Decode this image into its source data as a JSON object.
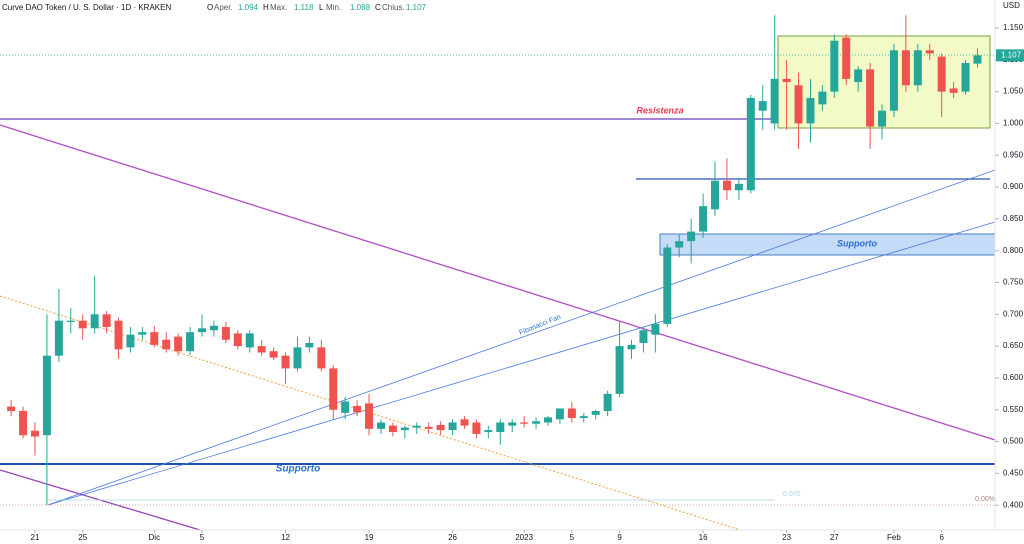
{
  "chart_data": {
    "type": "candlestick",
    "title": "Curve DAO Token / U. S. Dollar · 1D · KRAKEN",
    "header": {
      "o": "O",
      "o_label": "Aper.",
      "h": "H",
      "h_label": "Max.",
      "l": "L",
      "l_label": "Min.",
      "c": "C",
      "c_label": "Chius."
    },
    "currency": "USD",
    "categories": [
      null,
      null,
      "21",
      null,
      null,
      null,
      "25",
      null,
      null,
      null,
      null,
      null,
      "Dic",
      null,
      null,
      null,
      "5",
      null,
      null,
      null,
      null,
      null,
      null,
      "12",
      null,
      null,
      null,
      null,
      null,
      null,
      "19",
      null,
      null,
      null,
      null,
      null,
      null,
      "26",
      null,
      null,
      null,
      null,
      null,
      "2023",
      null,
      null,
      null,
      "5",
      null,
      null,
      null,
      "9",
      null,
      null,
      null,
      null,
      null,
      null,
      "16",
      null,
      null,
      null,
      null,
      null,
      null,
      "23",
      null,
      null,
      null,
      "27",
      null,
      null,
      null,
      null,
      "Feb",
      null,
      null,
      null,
      "6",
      null,
      null,
      null
    ],
    "open": [
      0.555,
      0.548,
      0.517,
      0.51,
      0.635,
      0.688,
      0.69,
      0.678,
      0.7,
      0.69,
      0.648,
      0.668,
      0.672,
      0.66,
      0.665,
      0.642,
      0.672,
      0.675,
      0.68,
      0.67,
      0.648,
      0.65,
      0.642,
      0.635,
      0.615,
      0.648,
      0.648,
      0.615,
      0.545,
      0.556,
      0.56,
      0.52,
      0.525,
      0.518,
      0.522,
      0.523,
      0.526,
      0.518,
      0.535,
      0.53,
      0.515,
      0.515,
      0.525,
      0.53,
      0.528,
      0.53,
      0.535,
      0.552,
      0.537,
      0.542,
      0.548,
      0.575,
      0.645,
      0.655,
      0.668,
      0.685,
      0.805,
      0.815,
      0.83,
      0.865,
      0.91,
      0.895,
      0.895,
      1.02,
      1.0,
      1.07,
      1.06,
      1.0,
      1.03,
      1.05,
      1.135,
      1.065,
      1.085,
      0.995,
      1.02,
      1.115,
      1.06,
      1.115,
      1.105,
      1.055,
      1.05,
      1.094
    ],
    "high": [
      0.565,
      0.555,
      0.53,
      0.7,
      0.74,
      0.71,
      0.7,
      0.76,
      0.705,
      0.695,
      0.68,
      0.68,
      0.682,
      0.672,
      0.67,
      0.68,
      0.7,
      0.69,
      0.688,
      0.675,
      0.675,
      0.66,
      0.648,
      0.64,
      0.665,
      0.665,
      0.66,
      0.62,
      0.57,
      0.565,
      0.575,
      0.535,
      0.53,
      0.525,
      0.53,
      0.53,
      0.532,
      0.535,
      0.54,
      0.535,
      0.525,
      0.535,
      0.535,
      0.54,
      0.538,
      0.54,
      0.545,
      0.562,
      0.545,
      0.55,
      0.58,
      0.69,
      0.66,
      0.68,
      0.7,
      0.81,
      0.825,
      0.85,
      0.89,
      0.94,
      0.945,
      0.915,
      1.045,
      1.06,
      1.17,
      1.1,
      1.08,
      1.07,
      1.06,
      1.14,
      1.14,
      1.09,
      1.095,
      1.03,
      1.125,
      1.17,
      1.125,
      1.125,
      1.11,
      1.065,
      1.1,
      1.118
    ],
    "low": [
      0.54,
      0.505,
      0.478,
      0.4,
      0.625,
      0.67,
      0.66,
      0.67,
      0.67,
      0.63,
      0.64,
      0.66,
      0.648,
      0.64,
      0.635,
      0.636,
      0.665,
      0.665,
      0.655,
      0.645,
      0.64,
      0.635,
      0.628,
      0.59,
      0.61,
      0.64,
      0.61,
      0.535,
      0.535,
      0.54,
      0.51,
      0.512,
      0.508,
      0.505,
      0.512,
      0.512,
      0.51,
      0.51,
      0.52,
      0.505,
      0.505,
      0.495,
      0.515,
      0.522,
      0.52,
      0.525,
      0.528,
      0.53,
      0.53,
      0.535,
      0.54,
      0.57,
      0.63,
      0.64,
      0.64,
      0.68,
      0.79,
      0.78,
      0.82,
      0.855,
      0.88,
      0.88,
      0.89,
      0.99,
      0.99,
      0.99,
      0.96,
      0.97,
      1.02,
      1.04,
      1.06,
      1.05,
      0.96,
      0.975,
      1.01,
      1.05,
      1.05,
      1.1,
      1.01,
      1.04,
      1.045,
      1.088
    ],
    "close": [
      0.548,
      0.51,
      0.508,
      0.635,
      0.69,
      0.69,
      0.678,
      0.7,
      0.68,
      0.645,
      0.668,
      0.672,
      0.652,
      0.645,
      0.642,
      0.672,
      0.678,
      0.682,
      0.66,
      0.65,
      0.67,
      0.64,
      0.632,
      0.615,
      0.648,
      0.655,
      0.615,
      0.55,
      0.563,
      0.546,
      0.52,
      0.53,
      0.515,
      0.522,
      0.525,
      0.52,
      0.518,
      0.53,
      0.525,
      0.512,
      0.518,
      0.53,
      0.53,
      0.528,
      0.532,
      0.538,
      0.552,
      0.537,
      0.54,
      0.548,
      0.575,
      0.65,
      0.652,
      0.675,
      0.685,
      0.805,
      0.815,
      0.83,
      0.87,
      0.91,
      0.895,
      0.905,
      1.04,
      1.035,
      1.07,
      1.065,
      1.0,
      1.04,
      1.05,
      1.13,
      1.07,
      1.085,
      0.995,
      1.02,
      1.115,
      1.06,
      1.115,
      1.11,
      1.05,
      1.048,
      1.095,
      1.107
    ],
    "up_color": "#26a69a",
    "down_color": "#ef5350",
    "ylim": [
      0.361,
      1.194
    ],
    "yticks": [
      {
        "value": 0.4,
        "label": "0.400"
      },
      {
        "value": 0.45,
        "label": "0.450"
      },
      {
        "value": 0.5,
        "label": "0.500"
      },
      {
        "value": 0.55,
        "label": "0.550"
      },
      {
        "value": 0.6,
        "label": "0.600"
      },
      {
        "value": 0.65,
        "label": "0.650"
      },
      {
        "value": 0.7,
        "label": "0.700"
      },
      {
        "value": 0.75,
        "label": "0.750"
      },
      {
        "value": 0.8,
        "label": "0.800"
      },
      {
        "value": 0.85,
        "label": "0.850"
      },
      {
        "value": 0.9,
        "label": "0.900"
      },
      {
        "value": 0.95,
        "label": "0.950"
      },
      {
        "value": 1.0,
        "label": "1.000"
      },
      {
        "value": 1.05,
        "label": "1.050"
      },
      {
        "value": 1.1,
        "label": "1.100"
      },
      {
        "value": 1.15,
        "label": "1.150"
      }
    ],
    "grid": false,
    "annotations": {
      "resistance": "Resistenza",
      "support_upper": "Supporto",
      "support_lower": "Supporto",
      "fan": "Fibonacci Fan",
      "fib_level": "0.005",
      "fib_pct": "0.00%"
    }
  }
}
